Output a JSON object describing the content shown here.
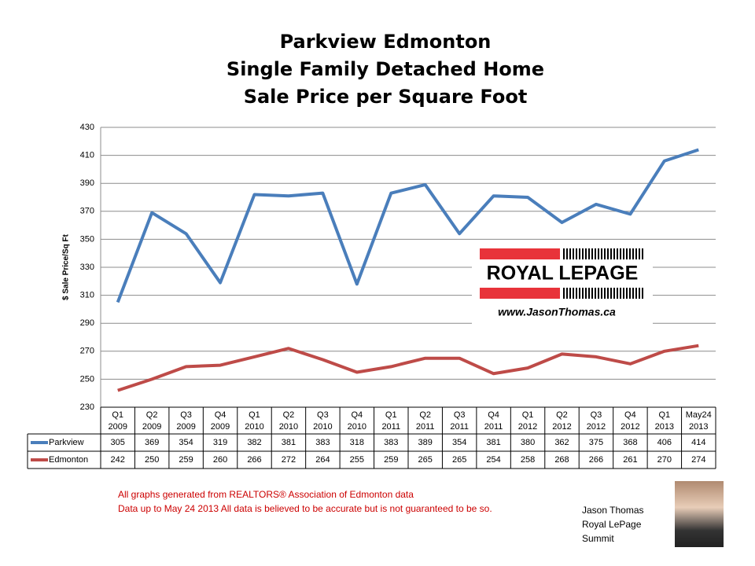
{
  "chart_data": {
    "type": "line",
    "title": "Parkview Edmonton\nSingle Family Detached Home\nSale Price per Square Foot",
    "y_label": "$ Sale Price/Sq Ft",
    "categories": [
      "Q1\n2009",
      "Q2\n2009",
      "Q3\n2009",
      "Q4\n2009",
      "Q1\n2010",
      "Q2\n2010",
      "Q3\n2010",
      "Q4\n2010",
      "Q1\n2011",
      "Q2\n2011",
      "Q3\n2011",
      "Q4\n2011",
      "Q1\n2012",
      "Q2\n2012",
      "Q3\n2012",
      "Q4\n2012",
      "Q1\n2013",
      "May24\n2013"
    ],
    "series": [
      {
        "name": "Parkview",
        "color": "#4a7ebb",
        "values": [
          305,
          369,
          354,
          319,
          382,
          381,
          383,
          318,
          383,
          389,
          354,
          381,
          380,
          362,
          375,
          368,
          406,
          414
        ]
      },
      {
        "name": "Edmonton",
        "color": "#be4b48",
        "values": [
          242,
          250,
          259,
          260,
          266,
          272,
          264,
          255,
          259,
          265,
          265,
          254,
          258,
          268,
          266,
          261,
          270,
          274
        ]
      }
    ],
    "ylim": [
      230,
      430
    ],
    "yticks": [
      230,
      250,
      270,
      290,
      310,
      330,
      350,
      370,
      390,
      410,
      430
    ],
    "grid": true
  },
  "logo": {
    "brand": "ROYAL LEPAGE",
    "website": "www.JasonThomas.ca"
  },
  "footer": {
    "lines": [
      "All graphs generated from REALTORS® Association of Edmonton data",
      "Data up to  May 24 2013  All data is believed to be accurate but is not guaranteed to be so."
    ]
  },
  "signature": {
    "lines": [
      "Jason Thomas",
      "Royal LePage",
      "Summit"
    ]
  }
}
